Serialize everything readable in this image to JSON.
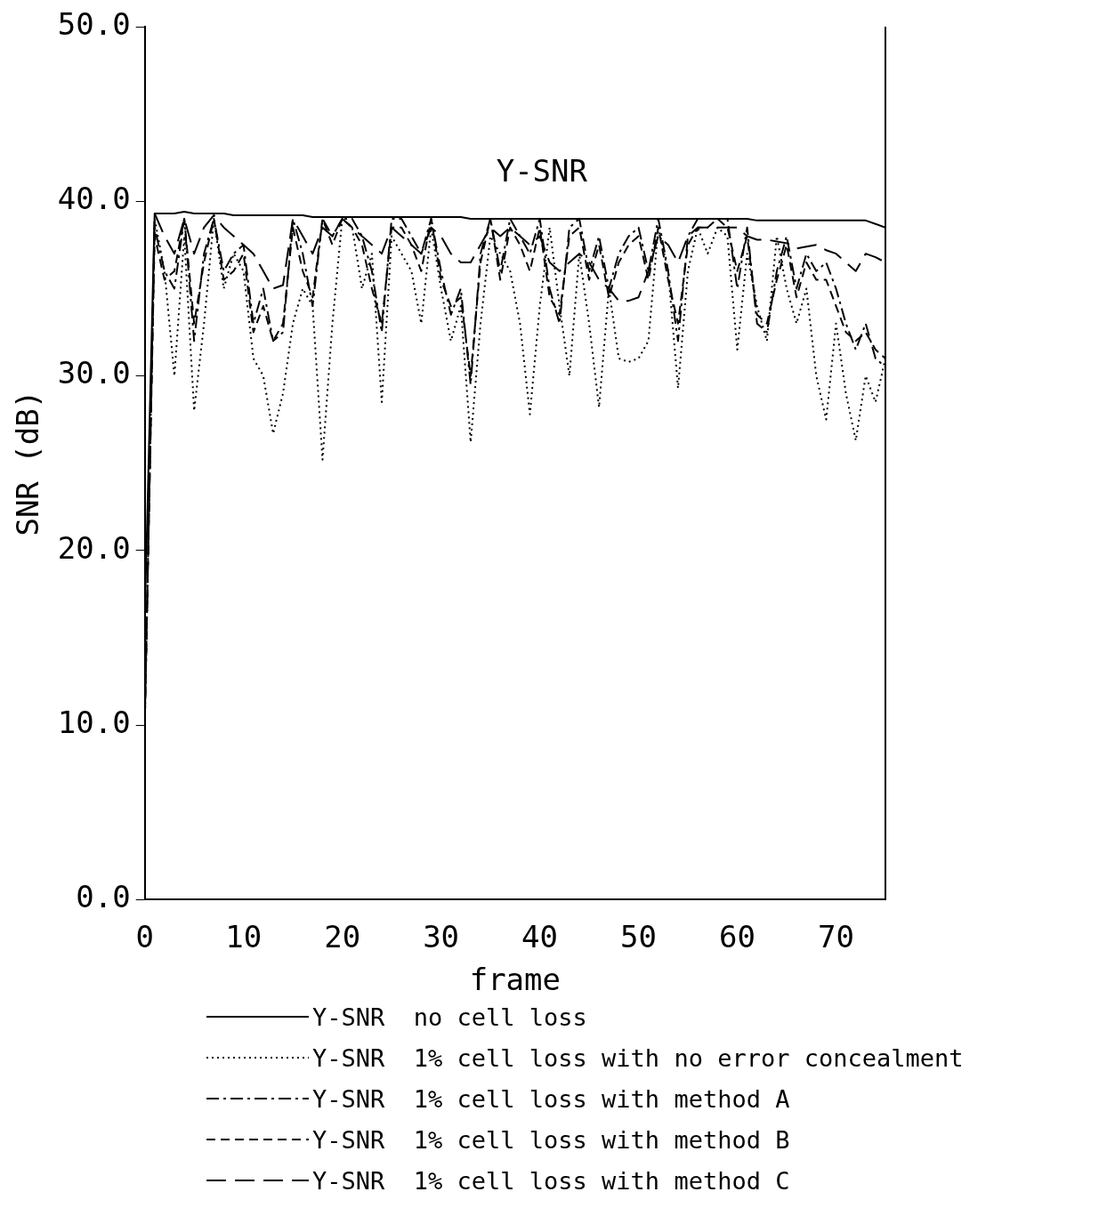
{
  "chart_data": {
    "type": "line",
    "title": "Y-SNR",
    "xlabel": "frame",
    "ylabel": "SNR (dB)",
    "x": [
      0,
      1,
      2,
      3,
      4,
      5,
      6,
      7,
      8,
      9,
      10,
      11,
      12,
      13,
      14,
      15,
      16,
      17,
      18,
      19,
      20,
      21,
      22,
      23,
      24,
      25,
      26,
      27,
      28,
      29,
      30,
      31,
      32,
      33,
      34,
      35,
      36,
      37,
      38,
      39,
      40,
      41,
      42,
      43,
      44,
      45,
      46,
      47,
      48,
      49,
      50,
      51,
      52,
      53,
      54,
      55,
      56,
      57,
      58,
      59,
      60,
      61,
      62,
      63,
      64,
      65,
      66,
      67,
      68,
      69,
      70,
      71,
      72,
      73,
      74,
      75
    ],
    "xlim": [
      0,
      75
    ],
    "xticks": [
      0,
      10,
      20,
      30,
      40,
      50,
      60,
      70
    ],
    "ylim": [
      0,
      50
    ],
    "yticks": [
      {
        "value": 0,
        "label": "0.0"
      },
      {
        "value": 10,
        "label": "10.0"
      },
      {
        "value": 20,
        "label": "20.0"
      },
      {
        "value": 30,
        "label": "30.0"
      },
      {
        "value": 40,
        "label": "40.0"
      },
      {
        "value": 50,
        "label": "50.0"
      }
    ],
    "grid": false,
    "legend": "bottom",
    "marker": "none",
    "series": [
      {
        "name": "Y-SNR  no cell loss",
        "color": "#000000",
        "line_style": "solid",
        "values": [
          16,
          39.3,
          39.3,
          39.3,
          39.4,
          39.3,
          39.3,
          39.3,
          39.3,
          39.2,
          39.2,
          39.2,
          39.2,
          39.2,
          39.2,
          39.2,
          39.2,
          39.1,
          39.1,
          39.1,
          39.1,
          39.1,
          39.1,
          39.1,
          39.1,
          39.1,
          39.1,
          39.1,
          39.1,
          39.1,
          39.1,
          39.1,
          39.1,
          39,
          39,
          39,
          39,
          39,
          39,
          39,
          39,
          39,
          39,
          39,
          39,
          39,
          39,
          39,
          39,
          39,
          39,
          39,
          39,
          39,
          39,
          39,
          39,
          39,
          39,
          39,
          39,
          39,
          38.9,
          38.9,
          38.9,
          38.9,
          38.9,
          38.9,
          38.9,
          38.9,
          38.9,
          38.9,
          38.9,
          38.9,
          38.7,
          38.5
        ]
      },
      {
        "name": "Y-SNR  1% cell loss with no error concealment",
        "color": "#000000",
        "line_style": "dotted",
        "values": [
          10,
          39,
          36,
          30,
          38,
          28,
          33,
          39,
          35,
          37,
          36,
          31,
          30,
          26.7,
          29,
          33,
          35,
          34,
          25.2,
          33,
          39,
          38.5,
          35,
          37,
          28.5,
          38,
          37,
          36,
          33,
          38.5,
          35,
          32,
          34,
          26.2,
          33,
          38,
          37,
          36,
          33,
          27.8,
          34,
          38.5,
          34,
          30,
          37,
          33,
          28.2,
          35,
          31,
          30.8,
          31,
          32,
          38.5,
          36,
          29.3,
          36,
          38.5,
          37,
          38.5,
          38,
          31.5,
          37,
          34,
          32,
          38,
          35,
          33,
          35,
          30,
          27.5,
          33,
          29,
          26.3,
          30,
          28.5,
          31
        ]
      },
      {
        "name": "Y-SNR  1% cell loss with method A",
        "color": "#000000",
        "line_style": "dashdot",
        "values": [
          10,
          38.5,
          36,
          35,
          39,
          32,
          37,
          39,
          36,
          37,
          37.5,
          33,
          35,
          32,
          32.5,
          39,
          37,
          34,
          39,
          38,
          39,
          39,
          38,
          36,
          32.5,
          39,
          39,
          38,
          37,
          39,
          36,
          33.5,
          35,
          29.5,
          37,
          39,
          36,
          39,
          38,
          37,
          39,
          35,
          33,
          38.5,
          39,
          36,
          38,
          35,
          37,
          38,
          38.5,
          36,
          39,
          36,
          32,
          38,
          39,
          39,
          39,
          39,
          35,
          38.5,
          33,
          32.5,
          36,
          38,
          35,
          37,
          36,
          36.5,
          35,
          33,
          31.5,
          33,
          31,
          30.5
        ]
      },
      {
        "name": "Y-SNR  1% cell loss with method B",
        "color": "#000000",
        "line_style": "dashed",
        "values": [
          10,
          38,
          35.5,
          36,
          39,
          33,
          36.5,
          39,
          35.5,
          36,
          37,
          32.5,
          34,
          32,
          33,
          38.5,
          36,
          34.5,
          39,
          37.5,
          39,
          38.5,
          37.5,
          35,
          33,
          38.5,
          38.5,
          37.5,
          36,
          39,
          35.5,
          34,
          34.5,
          30,
          36.5,
          39,
          35.5,
          38.5,
          37.5,
          36,
          38.5,
          34.5,
          33.5,
          38,
          38.5,
          35.5,
          37.5,
          34.5,
          36.5,
          37.5,
          38,
          35.5,
          38.5,
          35.5,
          33,
          37.5,
          38.5,
          38.5,
          39,
          38.5,
          36,
          38,
          33.5,
          33,
          35.5,
          37.5,
          34.5,
          36.5,
          35.5,
          35.5,
          34,
          32.5,
          32,
          32.5,
          31.5,
          31
        ]
      },
      {
        "name": "Y-SNR  1% cell loss with method C",
        "color": "#000000",
        "line_style": "longdash",
        "values": [
          10,
          39.3,
          38,
          37,
          39,
          37,
          38.5,
          39.2,
          38.5,
          38,
          37.5,
          37,
          36,
          35,
          35.2,
          39,
          38,
          37,
          38.5,
          38,
          39,
          38.5,
          38,
          37.5,
          37,
          38.5,
          38,
          37.5,
          37,
          38.5,
          38,
          37,
          36.5,
          36.5,
          37.5,
          38.5,
          38,
          38.5,
          38,
          37.5,
          38,
          36.5,
          36,
          36.5,
          37,
          36.5,
          35.5,
          35,
          34.3,
          34.3,
          34.5,
          36,
          38,
          37.5,
          36.5,
          38,
          38.5,
          38.5,
          38.5,
          38.5,
          38.5,
          38,
          37.8,
          37.8,
          37.7,
          37.6,
          37.3,
          37.4,
          37.5,
          37.2,
          37,
          36.5,
          36,
          37,
          36.8,
          36.5
        ]
      }
    ]
  }
}
